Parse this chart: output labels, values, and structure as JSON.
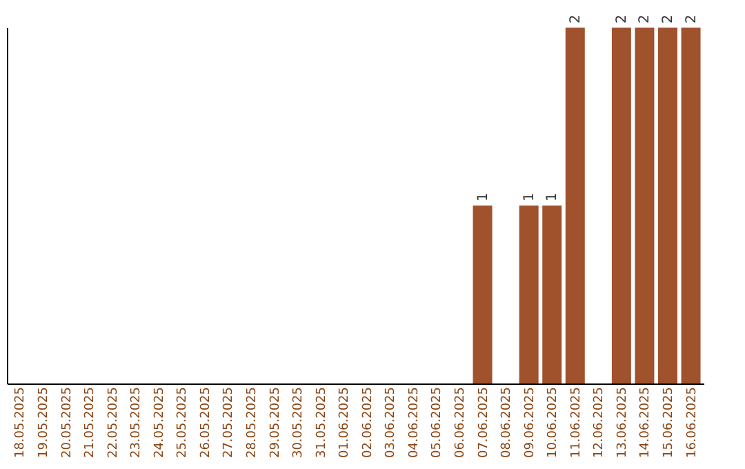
{
  "chart_data": {
    "type": "bar",
    "categories": [
      "18.05.2025",
      "19.05.2025",
      "20.05.2025",
      "21.05.2025",
      "22.05.2025",
      "23.05.2025",
      "24.05.2025",
      "25.05.2025",
      "26.05.2025",
      "27.05.2025",
      "28.05.2025",
      "29.05.2025",
      "30.05.2025",
      "31.05.2025",
      "01.06.2025",
      "02.06.2025",
      "03.06.2025",
      "04.06.2025",
      "05.06.2025",
      "06.06.2025",
      "07.06.2025",
      "08.06.2025",
      "09.06.2025",
      "10.06.2025",
      "11.06.2025",
      "12.06.2025",
      "13.06.2025",
      "14.06.2025",
      "15.06.2025",
      "16.06.2025"
    ],
    "values": [
      null,
      null,
      null,
      null,
      null,
      null,
      null,
      null,
      null,
      null,
      null,
      null,
      null,
      null,
      null,
      null,
      null,
      null,
      null,
      null,
      1,
      null,
      1,
      1,
      2,
      null,
      2,
      2,
      2,
      2
    ],
    "data_labels": true,
    "color": "#a0522d",
    "grid": false
  }
}
